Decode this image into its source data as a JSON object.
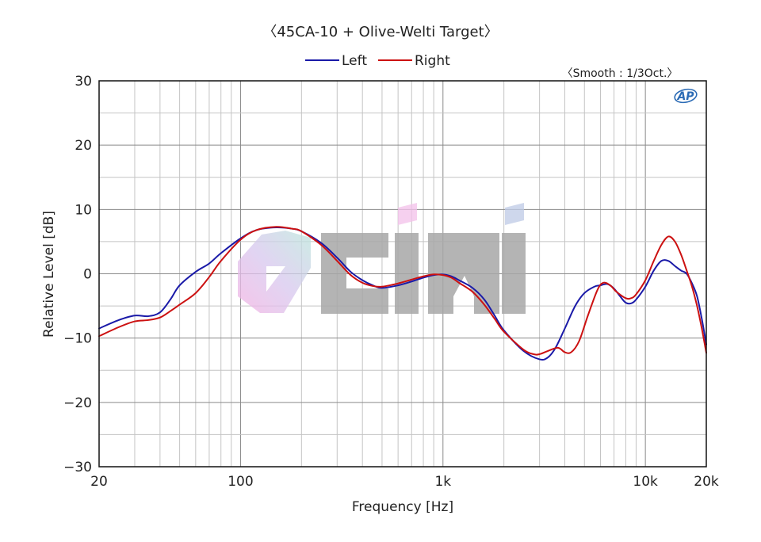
{
  "chart_data": {
    "type": "line",
    "title": "〈45CA-10 + Olive-Welti Target〉",
    "subtitle": "〈Smooth : 1/3Oct.〉",
    "xlabel": "Frequency [Hz]",
    "ylabel": "Relative Level [dB]",
    "x_scale": "log",
    "xlim": [
      20,
      20000
    ],
    "ylim": [
      -30,
      30
    ],
    "grid": true,
    "legend_position": "top-center",
    "x_ticks": [
      {
        "value": 20,
        "label": "20"
      },
      {
        "value": 100,
        "label": "100"
      },
      {
        "value": 1000,
        "label": "1k"
      },
      {
        "value": 10000,
        "label": "10k"
      },
      {
        "value": 20000,
        "label": "20k"
      }
    ],
    "y_ticks": [
      {
        "value": 30,
        "label": "30"
      },
      {
        "value": 20,
        "label": "20"
      },
      {
        "value": 10,
        "label": "10"
      },
      {
        "value": 0,
        "label": "0"
      },
      {
        "value": -10,
        "label": "−10"
      },
      {
        "value": -20,
        "label": "−20"
      },
      {
        "value": -30,
        "label": "−30"
      }
    ],
    "series": [
      {
        "name": "Left",
        "color": "#1a1aa8",
        "points": [
          [
            20,
            -8.5
          ],
          [
            25,
            -7.2
          ],
          [
            30,
            -6.5
          ],
          [
            35,
            -6.6
          ],
          [
            40,
            -6.0
          ],
          [
            45,
            -4.0
          ],
          [
            50,
            -1.8
          ],
          [
            60,
            0.3
          ],
          [
            70,
            1.6
          ],
          [
            80,
            3.2
          ],
          [
            100,
            5.5
          ],
          [
            120,
            6.8
          ],
          [
            150,
            7.2
          ],
          [
            180,
            7.0
          ],
          [
            200,
            6.6
          ],
          [
            250,
            4.8
          ],
          [
            300,
            2.5
          ],
          [
            350,
            0.3
          ],
          [
            400,
            -1.0
          ],
          [
            450,
            -1.8
          ],
          [
            500,
            -2.2
          ],
          [
            600,
            -1.8
          ],
          [
            700,
            -1.2
          ],
          [
            800,
            -0.6
          ],
          [
            900,
            -0.2
          ],
          [
            1000,
            -0.1
          ],
          [
            1100,
            -0.4
          ],
          [
            1200,
            -1.0
          ],
          [
            1400,
            -2.2
          ],
          [
            1600,
            -4.0
          ],
          [
            1800,
            -6.5
          ],
          [
            2000,
            -8.8
          ],
          [
            2500,
            -12.0
          ],
          [
            3000,
            -13.3
          ],
          [
            3300,
            -13.0
          ],
          [
            3600,
            -11.5
          ],
          [
            4000,
            -8.5
          ],
          [
            4500,
            -5.0
          ],
          [
            5000,
            -3.0
          ],
          [
            5600,
            -2.0
          ],
          [
            6000,
            -1.8
          ],
          [
            6500,
            -1.6
          ],
          [
            7000,
            -2.3
          ],
          [
            7500,
            -3.5
          ],
          [
            8000,
            -4.5
          ],
          [
            8500,
            -4.6
          ],
          [
            9000,
            -4.0
          ],
          [
            10000,
            -2.0
          ],
          [
            11000,
            0.5
          ],
          [
            12000,
            2.0
          ],
          [
            13000,
            2.0
          ],
          [
            14000,
            1.2
          ],
          [
            15000,
            0.5
          ],
          [
            16000,
            0.0
          ],
          [
            17000,
            -1.5
          ],
          [
            18000,
            -3.5
          ],
          [
            19000,
            -7.0
          ],
          [
            20000,
            -11.0
          ]
        ]
      },
      {
        "name": "Right",
        "color": "#cc1111",
        "points": [
          [
            20,
            -9.7
          ],
          [
            25,
            -8.3
          ],
          [
            30,
            -7.4
          ],
          [
            35,
            -7.2
          ],
          [
            40,
            -6.8
          ],
          [
            45,
            -5.8
          ],
          [
            50,
            -4.8
          ],
          [
            60,
            -3.0
          ],
          [
            70,
            -0.5
          ],
          [
            80,
            2.0
          ],
          [
            100,
            5.3
          ],
          [
            120,
            6.8
          ],
          [
            150,
            7.3
          ],
          [
            180,
            7.0
          ],
          [
            200,
            6.6
          ],
          [
            250,
            4.5
          ],
          [
            300,
            2.0
          ],
          [
            350,
            -0.2
          ],
          [
            400,
            -1.4
          ],
          [
            450,
            -1.9
          ],
          [
            500,
            -2.0
          ],
          [
            600,
            -1.5
          ],
          [
            700,
            -0.9
          ],
          [
            800,
            -0.4
          ],
          [
            900,
            -0.1
          ],
          [
            1000,
            -0.2
          ],
          [
            1100,
            -0.6
          ],
          [
            1200,
            -1.4
          ],
          [
            1400,
            -2.8
          ],
          [
            1600,
            -4.8
          ],
          [
            1800,
            -7.0
          ],
          [
            2000,
            -9.0
          ],
          [
            2500,
            -11.8
          ],
          [
            2800,
            -12.5
          ],
          [
            3000,
            -12.5
          ],
          [
            3300,
            -12.0
          ],
          [
            3700,
            -11.5
          ],
          [
            4000,
            -12.2
          ],
          [
            4300,
            -12.2
          ],
          [
            4700,
            -10.5
          ],
          [
            5200,
            -6.5
          ],
          [
            5800,
            -2.5
          ],
          [
            6200,
            -1.4
          ],
          [
            6700,
            -1.8
          ],
          [
            7200,
            -2.8
          ],
          [
            8000,
            -3.8
          ],
          [
            8500,
            -3.8
          ],
          [
            9000,
            -3.2
          ],
          [
            10000,
            -1.0
          ],
          [
            11000,
            2.0
          ],
          [
            12000,
            4.5
          ],
          [
            13000,
            5.8
          ],
          [
            14000,
            5.0
          ],
          [
            15000,
            3.0
          ],
          [
            16000,
            0.5
          ],
          [
            17000,
            -2.0
          ],
          [
            18000,
            -5.0
          ],
          [
            19000,
            -8.5
          ],
          [
            20000,
            -12.3
          ]
        ]
      }
    ]
  },
  "watermark": {
    "text": "ciki",
    "gray": "#a8a8a8"
  },
  "brand_logo": {
    "text": "AP",
    "color": "#2b6bb5"
  }
}
